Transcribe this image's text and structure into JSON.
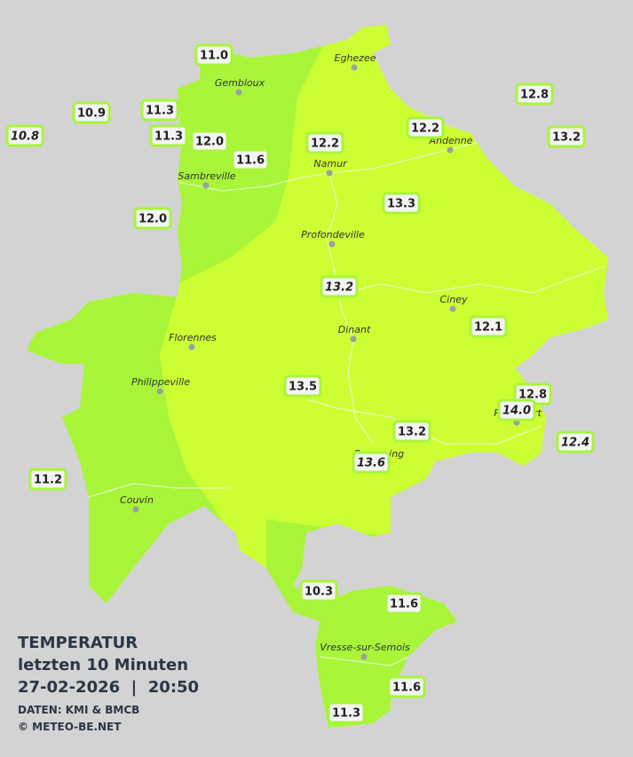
{
  "legend": {
    "title": "TEMPERATUR",
    "subtitle": "letzten 10 Minuten",
    "datetime": "27-02-2026  |  20:50",
    "source": "DATEN: KMI & BMCB",
    "copyright": "© METEO-BE.NET"
  },
  "cities": [
    "Eghezee",
    "Gembloux",
    "Andenne",
    "Namur",
    "Sambreville",
    "Profondeville",
    "Ciney",
    "Dinant",
    "Florennes",
    "Philippeville",
    "Rochefort",
    "Beauraing",
    "Couvin",
    "Vresse-sur-Semois"
  ],
  "stations": [
    "11.0",
    "10.9",
    "11.3",
    "10.8",
    "11.3",
    "12.0",
    "11.6",
    "12.2",
    "12.2",
    "12.8",
    "13.2",
    "12.0",
    "13.3",
    "13.2",
    "12.1",
    "13.5",
    "12.8",
    "14.0",
    "13.2",
    "12.4",
    "13.6",
    "11.2",
    "10.3",
    "11.6",
    "11.6",
    "11.3"
  ]
}
